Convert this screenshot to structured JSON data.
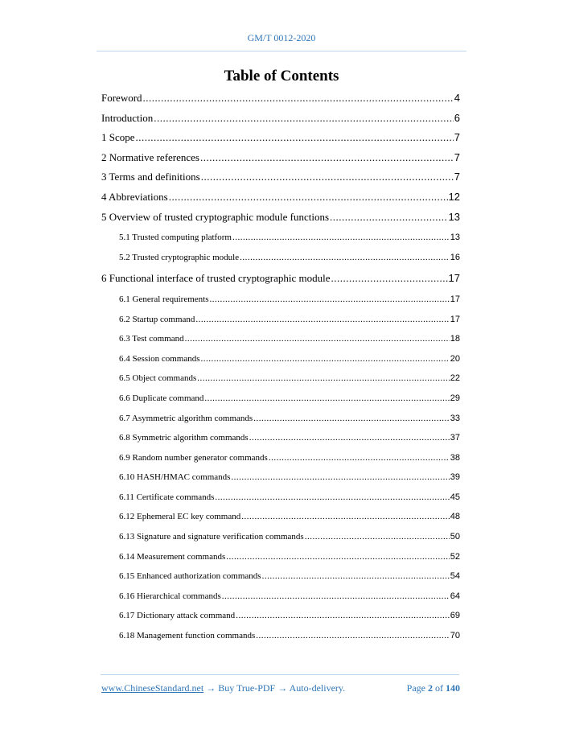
{
  "header": {
    "doc_id": "GM/T 0012-2020"
  },
  "title": "Table of Contents",
  "toc": [
    {
      "label": "Foreword",
      "page": "4",
      "level": 1
    },
    {
      "label": "Introduction",
      "page": "6",
      "level": 1
    },
    {
      "label": "1 Scope",
      "page": "7",
      "level": 1
    },
    {
      "label": "2 Normative references",
      "page": "7",
      "level": 1
    },
    {
      "label": "3 Terms and definitions",
      "page": "7",
      "level": 1
    },
    {
      "label": "4 Abbreviations",
      "page": "12",
      "level": 1
    },
    {
      "label": "5 Overview of trusted cryptographic module functions",
      "page": "13",
      "level": 1
    },
    {
      "label": "5.1 Trusted computing platform",
      "page": "13",
      "level": 2
    },
    {
      "label": "5.2 Trusted cryptographic module",
      "page": "16",
      "level": 2
    },
    {
      "label": "6 Functional interface of trusted cryptographic module",
      "page": "17",
      "level": 1
    },
    {
      "label": "6.1 General requirements",
      "page": "17",
      "level": 2
    },
    {
      "label": "6.2 Startup command",
      "page": "17",
      "level": 2
    },
    {
      "label": "6.3 Test command",
      "page": "18",
      "level": 2
    },
    {
      "label": "6.4 Session commands",
      "page": "20",
      "level": 2
    },
    {
      "label": "6.5 Object commands",
      "page": "22",
      "level": 2
    },
    {
      "label": "6.6 Duplicate command",
      "page": "29",
      "level": 2
    },
    {
      "label": "6.7 Asymmetric algorithm commands",
      "page": "33",
      "level": 2
    },
    {
      "label": "6.8 Symmetric algorithm commands",
      "page": "37",
      "level": 2
    },
    {
      "label": "6.9 Random number generator commands",
      "page": "38",
      "level": 2
    },
    {
      "label": "6.10 HASH/HMAC commands",
      "page": "39",
      "level": 2
    },
    {
      "label": "6.11 Certificate commands",
      "page": "45",
      "level": 2
    },
    {
      "label": "6.12 Ephemeral EC key command",
      "page": "48",
      "level": 2
    },
    {
      "label": "6.13 Signature and signature verification commands",
      "page": "50",
      "level": 2
    },
    {
      "label": "6.14 Measurement commands",
      "page": "52",
      "level": 2
    },
    {
      "label": "6.15 Enhanced authorization commands",
      "page": "54",
      "level": 2
    },
    {
      "label": "6.16 Hierarchical commands",
      "page": "64",
      "level": 2
    },
    {
      "label": "6.17 Dictionary attack command",
      "page": "69",
      "level": 2
    },
    {
      "label": "6.18 Management function commands",
      "page": "70",
      "level": 2
    }
  ],
  "footer": {
    "link": "www.ChineseStandard.net",
    "arrow": "→",
    "buy": "Buy True-PDF",
    "auto": "Auto-delivery.",
    "page_word": "Page",
    "page": "2",
    "of_word": "of",
    "total": "140"
  },
  "colors": {
    "accent": "#2e75b6",
    "rule": "#bdd7ee"
  }
}
